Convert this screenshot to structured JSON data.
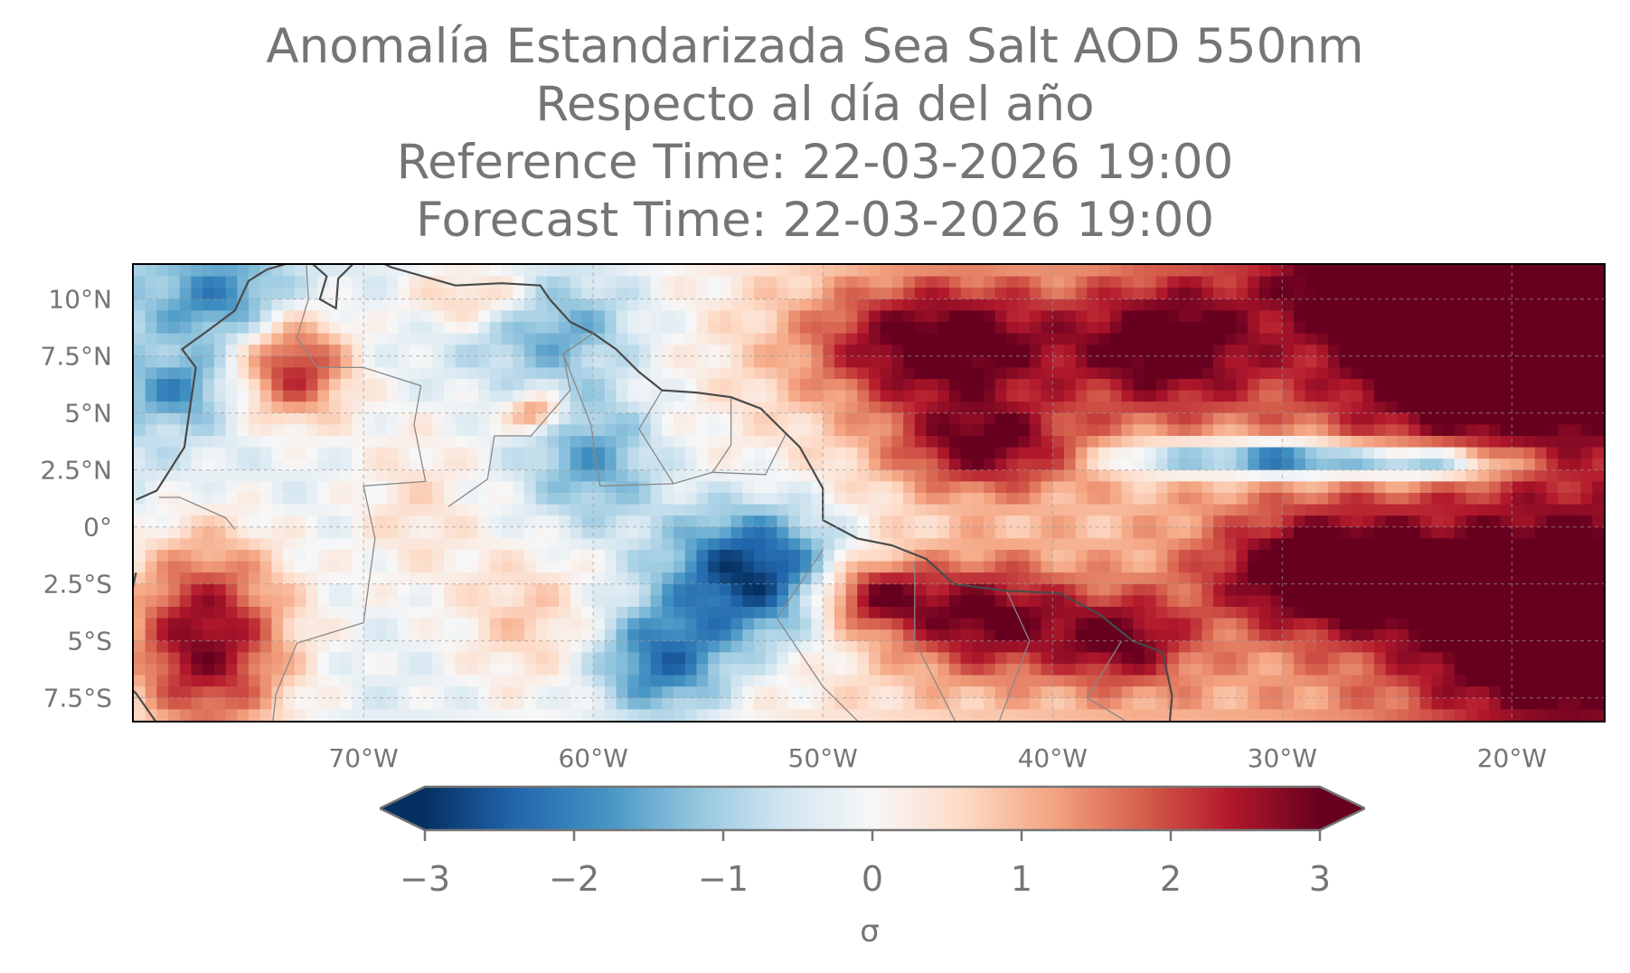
{
  "title": {
    "line1": "Anomalía Estandarizada Sea Salt AOD 550nm",
    "line2": "Respecto al día del año",
    "line3": "Reference Time: 22-03-2026 19:00",
    "line4": "Forecast Time: 22-03-2026 19:00"
  },
  "map": {
    "lon_range": [
      -80,
      -16
    ],
    "lat_range": [
      -8.5,
      11.5
    ],
    "lat_ticks": [
      "10°N",
      "7.5°N",
      "5°N",
      "2.5°N",
      "0°",
      "2.5°S",
      "5°S",
      "7.5°S"
    ],
    "lat_tick_values": [
      10,
      7.5,
      5,
      2.5,
      0,
      -2.5,
      -5,
      -7.5
    ],
    "lon_ticks": [
      "70°W",
      "60°W",
      "50°W",
      "40°W",
      "30°W",
      "20°W"
    ],
    "lon_tick_values": [
      -70,
      -60,
      -50,
      -40,
      -30,
      -20
    ],
    "gridlines": true,
    "colors": {
      "coastline": "#4a4a4a",
      "borders": "#888888",
      "frame": "#000000"
    }
  },
  "colorbar": {
    "label": "σ",
    "ticks": [
      "−3",
      "−2",
      "−1",
      "0",
      "1",
      "2",
      "3"
    ],
    "tick_values": [
      -3,
      -2,
      -1,
      0,
      1,
      2,
      3
    ],
    "range": [
      -3,
      3
    ],
    "extend": "both",
    "colormap": "RdBu_r",
    "stops": [
      "#053061",
      "#2166ac",
      "#4393c3",
      "#92c5de",
      "#d1e5f0",
      "#f7f7f7",
      "#fddbc7",
      "#f4a582",
      "#d6604d",
      "#b2182b",
      "#67001f"
    ]
  }
}
